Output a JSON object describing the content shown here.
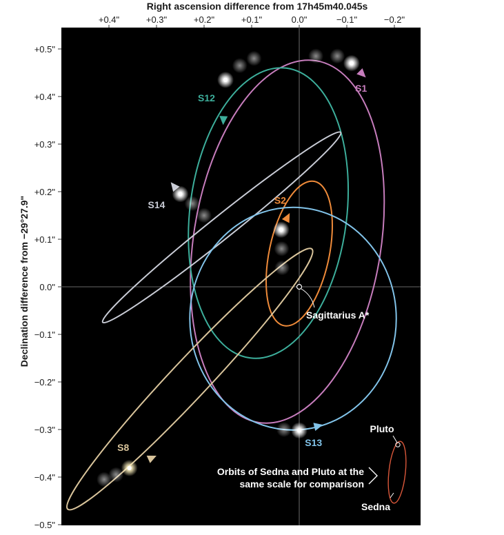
{
  "chart_data": {
    "type": "scatter",
    "xlabel": "Right ascension difference from 17h45m40.045s",
    "ylabel": "Declination difference from −29°27.9\"",
    "xlim": [
      0.5,
      -0.24
    ],
    "ylim": [
      -0.5,
      0.54
    ],
    "x_ticks": [
      {
        "value": 0.4,
        "label": "+0.4\""
      },
      {
        "value": 0.3,
        "label": "+0.3\""
      },
      {
        "value": 0.2,
        "label": "+0.2\""
      },
      {
        "value": 0.1,
        "label": "+0.1\""
      },
      {
        "value": 0.0,
        "label": "0.0\""
      },
      {
        "value": -0.1,
        "label": "−0.1\""
      },
      {
        "value": -0.2,
        "label": "−0.2\""
      }
    ],
    "y_ticks": [
      {
        "value": 0.5,
        "label": "+0.5\""
      },
      {
        "value": 0.4,
        "label": "+0.4\""
      },
      {
        "value": 0.3,
        "label": "+0.3\""
      },
      {
        "value": 0.2,
        "label": "+0.2\""
      },
      {
        "value": 0.1,
        "label": "+0.1\""
      },
      {
        "value": 0.0,
        "label": "0.0\""
      },
      {
        "value": -0.1,
        "label": "−0.1\""
      },
      {
        "value": -0.2,
        "label": "−0.2\""
      },
      {
        "value": -0.3,
        "label": "−0.3\""
      },
      {
        "value": -0.4,
        "label": "−0.4\""
      },
      {
        "value": -0.5,
        "label": "−0.5\""
      }
    ],
    "grid": "crosshair at 0,0",
    "background": "#000000",
    "center": {
      "name": "Sagittarius A*",
      "x": 0.0,
      "y": 0.0
    },
    "series": [
      {
        "name": "S1",
        "color": "#c77dbd",
        "ellipse": {
          "cx": 0.025,
          "cy": 0.095,
          "rx": 0.197,
          "ry": 0.385,
          "rotation_deg": 9
        },
        "arrow_at": {
          "x": -0.14,
          "y": 0.44
        },
        "positions": [
          {
            "x": -0.11,
            "y": 0.47
          },
          {
            "x": -0.08,
            "y": 0.485
          },
          {
            "x": -0.035,
            "y": 0.485
          }
        ],
        "label_at": {
          "x": -0.13,
          "y": 0.41
        }
      },
      {
        "name": "S12",
        "color": "#3daf9c",
        "ellipse": {
          "cx": 0.065,
          "cy": 0.155,
          "rx": 0.165,
          "ry": 0.307,
          "rotation_deg": 7
        },
        "arrow_at": {
          "x": 0.16,
          "y": 0.34
        },
        "positions": [
          {
            "x": 0.155,
            "y": 0.435
          },
          {
            "x": 0.125,
            "y": 0.465
          },
          {
            "x": 0.095,
            "y": 0.48
          }
        ],
        "label_at": {
          "x": 0.195,
          "y": 0.39
        }
      },
      {
        "name": "S14",
        "color": "#c9ccd6",
        "ellipse": {
          "cx": 0.163,
          "cy": 0.125,
          "rx": 0.32,
          "ry": 0.024,
          "rotation_deg": -38.6
        },
        "arrow_at": {
          "x": 0.27,
          "y": 0.22
        },
        "positions": [
          {
            "x": 0.25,
            "y": 0.195
          },
          {
            "x": 0.225,
            "y": 0.175
          },
          {
            "x": 0.2,
            "y": 0.15
          }
        ],
        "label_at": {
          "x": 0.3,
          "y": 0.165
        }
      },
      {
        "name": "S2",
        "color": "#ef8b3a",
        "ellipse": {
          "cx": 0.0,
          "cy": 0.07,
          "rx": 0.063,
          "ry": 0.155,
          "rotation_deg": 12
        },
        "arrow_at": {
          "x": 0.02,
          "y": 0.155
        },
        "positions": [
          {
            "x": 0.038,
            "y": 0.12
          },
          {
            "x": 0.037,
            "y": 0.08
          },
          {
            "x": 0.036,
            "y": 0.04
          }
        ],
        "label_at": {
          "x": 0.04,
          "y": 0.175
        }
      },
      {
        "name": "S13",
        "color": "#82c4ea",
        "ellipse": {
          "cx": 0.013,
          "cy": -0.067,
          "rx": 0.217,
          "ry": 0.234,
          "rotation_deg": 0
        },
        "arrow_at": {
          "x": -0.05,
          "y": -0.29
        },
        "positions": [
          {
            "x": 0.0,
            "y": -0.302
          },
          {
            "x": 0.032,
            "y": -0.3
          }
        ],
        "label_at": {
          "x": -0.03,
          "y": -0.335
        }
      },
      {
        "name": "S8",
        "color": "#d9c49b",
        "ellipse": {
          "cx": 0.23,
          "cy": -0.194,
          "rx": 0.375,
          "ry": 0.04,
          "rotation_deg": -46.8
        },
        "arrow_at": {
          "x": 0.3,
          "y": -0.355
        },
        "positions": [
          {
            "x": 0.357,
            "y": -0.381
          },
          {
            "x": 0.385,
            "y": -0.395
          },
          {
            "x": 0.41,
            "y": -0.405
          }
        ],
        "label_at": {
          "x": 0.37,
          "y": -0.345
        }
      }
    ],
    "inset": {
      "caption_line1": "Orbits of Sedna and Pluto at the",
      "caption_line2": "same scale for comparison",
      "pluto_label": "Pluto",
      "sedna_label": "Sedna",
      "color": "#d9573a"
    }
  }
}
